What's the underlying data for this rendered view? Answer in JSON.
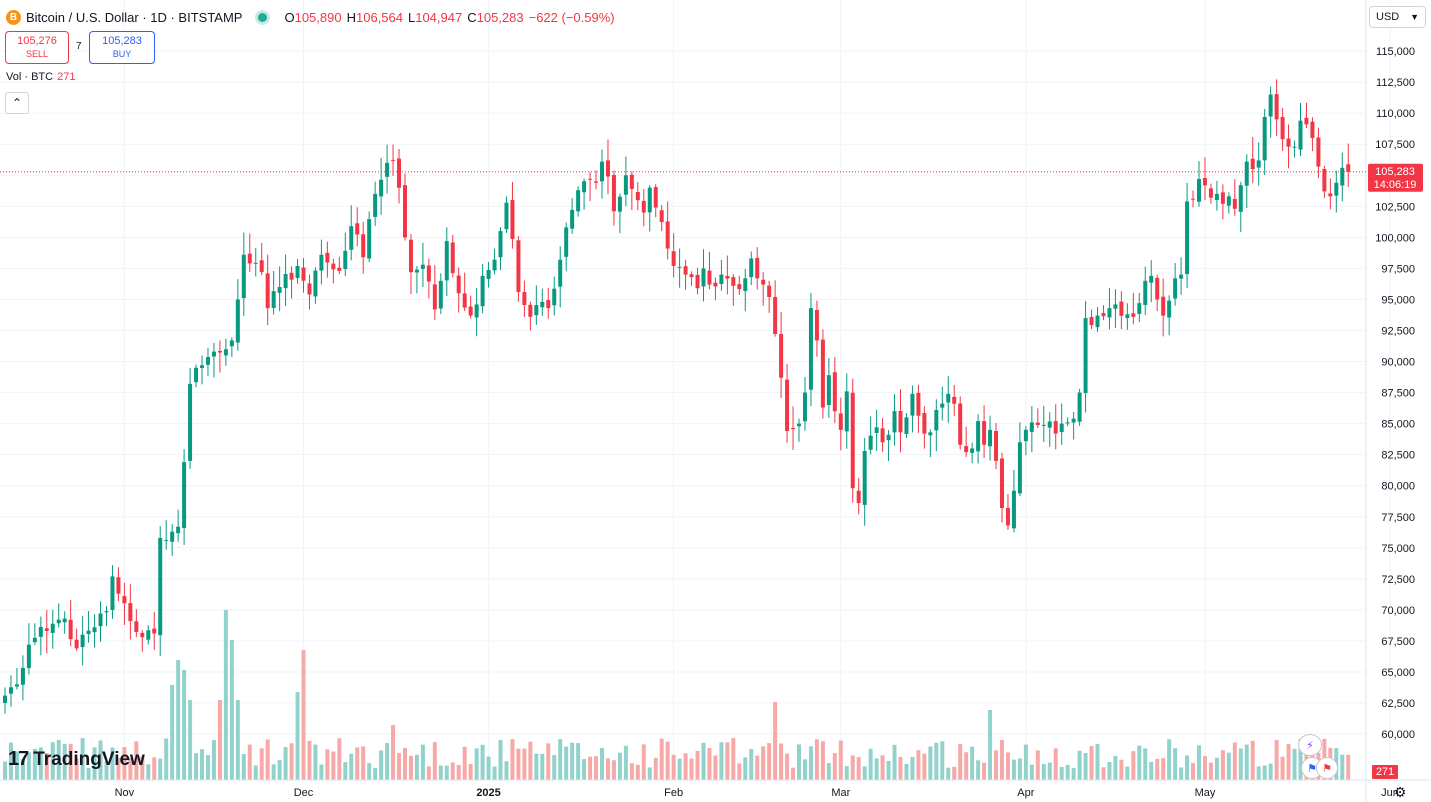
{
  "header": {
    "symbol_icon": "B",
    "title": "Bitcoin / U.S. Dollar · 1D · BITSTAMP",
    "open_label": "O",
    "open": "105,890",
    "high_label": "H",
    "high": "106,564",
    "low_label": "L",
    "low": "104,947",
    "close_label": "C",
    "close": "105,283",
    "change": "−622 (−0.59%)"
  },
  "trade": {
    "sell_price": "105,276",
    "sell_label": "SELL",
    "spread": "7",
    "buy_price": "105,283",
    "buy_label": "BUY"
  },
  "volume_legend": {
    "label": "Vol · BTC",
    "value": "271"
  },
  "currency_button": {
    "label": "USD",
    "icon": "chevron-down-icon"
  },
  "branding": {
    "logo_mark": "17",
    "logo_text": "TradingView"
  },
  "colors": {
    "up": "#089981",
    "down": "#f23645",
    "up_vol": "#92d2cc",
    "down_vol": "#f7a9a7",
    "price_line": "#f23645",
    "grid": "#f0f3fa"
  },
  "chart_data": {
    "type": "candlestick",
    "title": "Bitcoin / U.S. Dollar · 1D · BITSTAMP",
    "xlabel": "",
    "ylabel": "USD",
    "ylim": [
      56300,
      116700
    ],
    "y_ticks": [
      60000,
      62500,
      65000,
      67500,
      70000,
      72500,
      75000,
      77500,
      80000,
      82500,
      85000,
      87500,
      90000,
      92500,
      95000,
      97500,
      100000,
      102500,
      105000,
      107500,
      110000,
      112500,
      115000
    ],
    "x_ticks": [
      {
        "label": "Nov",
        "index": 20
      },
      {
        "label": "Dec",
        "index": 50
      },
      {
        "label": "2025",
        "index": 81
      },
      {
        "label": "Feb",
        "index": 112
      },
      {
        "label": "Mar",
        "index": 140
      },
      {
        "label": "Apr",
        "index": 171
      },
      {
        "label": "May",
        "index": 201
      },
      {
        "label": "Jun",
        "index": 232
      }
    ],
    "last_price": "105,283",
    "last_price_value": 105283,
    "countdown": "14:06:19",
    "volume_last": "271",
    "anchors": [
      [
        0,
        63100
      ],
      [
        2,
        64000
      ],
      [
        4,
        67200
      ],
      [
        7,
        68300
      ],
      [
        10,
        69300
      ],
      [
        12,
        66900
      ],
      [
        15,
        68600
      ],
      [
        17,
        69900
      ],
      [
        18,
        72700
      ],
      [
        19,
        71300
      ],
      [
        21,
        69100
      ],
      [
        23,
        67800
      ],
      [
        25,
        68100
      ],
      [
        26,
        75800
      ],
      [
        28,
        76300
      ],
      [
        29,
        76700
      ],
      [
        30,
        81900
      ],
      [
        31,
        88200
      ],
      [
        32,
        89500
      ],
      [
        33,
        89700
      ],
      [
        35,
        90800
      ],
      [
        38,
        91700
      ],
      [
        39,
        95000
      ],
      [
        40,
        98600
      ],
      [
        41,
        97900
      ],
      [
        43,
        97200
      ],
      [
        44,
        94300
      ],
      [
        46,
        96000
      ],
      [
        49,
        97700
      ],
      [
        51,
        95400
      ],
      [
        53,
        98600
      ],
      [
        56,
        97300
      ],
      [
        58,
        100900
      ],
      [
        60,
        98400
      ],
      [
        62,
        103500
      ],
      [
        64,
        106000
      ],
      [
        65,
        106200
      ],
      [
        66,
        104000
      ],
      [
        67,
        100000
      ],
      [
        68,
        97200
      ],
      [
        70,
        97800
      ],
      [
        72,
        94200
      ],
      [
        74,
        99700
      ],
      [
        76,
        95500
      ],
      [
        78,
        93700
      ],
      [
        79,
        94600
      ],
      [
        80,
        96900
      ],
      [
        82,
        98200
      ],
      [
        84,
        102800
      ],
      [
        86,
        95600
      ],
      [
        88,
        93600
      ],
      [
        90,
        94800
      ],
      [
        91,
        94300
      ],
      [
        93,
        98200
      ],
      [
        94,
        100800
      ],
      [
        96,
        103800
      ],
      [
        99,
        104400
      ],
      [
        100,
        106100
      ],
      [
        101,
        104900
      ],
      [
        102,
        102100
      ],
      [
        104,
        105000
      ],
      [
        105,
        103900
      ],
      [
        107,
        102000
      ],
      [
        108,
        104000
      ],
      [
        109,
        102400
      ],
      [
        111,
        99100
      ],
      [
        112,
        97700
      ],
      [
        114,
        97000
      ],
      [
        115,
        96800
      ],
      [
        116,
        95900
      ],
      [
        117,
        97500
      ],
      [
        118,
        96200
      ],
      [
        120,
        97000
      ],
      [
        122,
        96100
      ],
      [
        124,
        96700
      ],
      [
        125,
        98300
      ],
      [
        126,
        96700
      ],
      [
        127,
        96200
      ],
      [
        128,
        95200
      ],
      [
        130,
        88700
      ],
      [
        131,
        84400
      ],
      [
        133,
        85000
      ],
      [
        134,
        87500
      ],
      [
        135,
        94300
      ],
      [
        136,
        91700
      ],
      [
        137,
        86300
      ],
      [
        138,
        88900
      ],
      [
        139,
        86000
      ],
      [
        140,
        84500
      ],
      [
        141,
        87600
      ],
      [
        142,
        79800
      ],
      [
        143,
        78600
      ],
      [
        144,
        82800
      ],
      [
        146,
        84700
      ],
      [
        147,
        83500
      ],
      [
        148,
        84100
      ],
      [
        149,
        86000
      ],
      [
        150,
        84300
      ],
      [
        152,
        87400
      ],
      [
        154,
        84200
      ],
      [
        155,
        84300
      ],
      [
        156,
        86100
      ],
      [
        158,
        87400
      ],
      [
        159,
        86600
      ],
      [
        160,
        83300
      ],
      [
        161,
        82700
      ],
      [
        162,
        83000
      ],
      [
        163,
        85200
      ],
      [
        164,
        83300
      ],
      [
        165,
        84500
      ],
      [
        166,
        82000
      ],
      [
        167,
        78200
      ],
      [
        168,
        76800
      ],
      [
        169,
        79600
      ],
      [
        170,
        83500
      ],
      [
        171,
        84500
      ],
      [
        172,
        85100
      ],
      [
        174,
        84900
      ],
      [
        176,
        84200
      ],
      [
        177,
        85000
      ],
      [
        179,
        85400
      ],
      [
        180,
        87500
      ],
      [
        181,
        93500
      ],
      [
        183,
        93700
      ],
      [
        185,
        94300
      ],
      [
        186,
        94600
      ],
      [
        188,
        93800
      ],
      [
        189,
        93600
      ],
      [
        190,
        94700
      ],
      [
        191,
        96500
      ],
      [
        192,
        96900
      ],
      [
        193,
        95000
      ],
      [
        194,
        93700
      ],
      [
        195,
        94900
      ],
      [
        196,
        96700
      ],
      [
        197,
        97000
      ],
      [
        198,
        102900
      ],
      [
        199,
        103100
      ],
      [
        200,
        104700
      ],
      [
        202,
        103200
      ],
      [
        203,
        103500
      ],
      [
        205,
        103300
      ],
      [
        206,
        102300
      ],
      [
        207,
        104200
      ],
      [
        208,
        106100
      ],
      [
        209,
        105500
      ],
      [
        210,
        106200
      ],
      [
        211,
        109700
      ],
      [
        212,
        111500
      ],
      [
        213,
        109500
      ],
      [
        214,
        107900
      ],
      [
        216,
        107300
      ],
      [
        217,
        109400
      ],
      [
        218,
        109100
      ],
      [
        219,
        108000
      ],
      [
        220,
        105700
      ],
      [
        221,
        103700
      ],
      [
        222,
        103300
      ],
      [
        223,
        104400
      ],
      [
        224,
        105600
      ],
      [
        225,
        105890
      ]
    ],
    "volume_range": [
      0,
      24
    ]
  }
}
